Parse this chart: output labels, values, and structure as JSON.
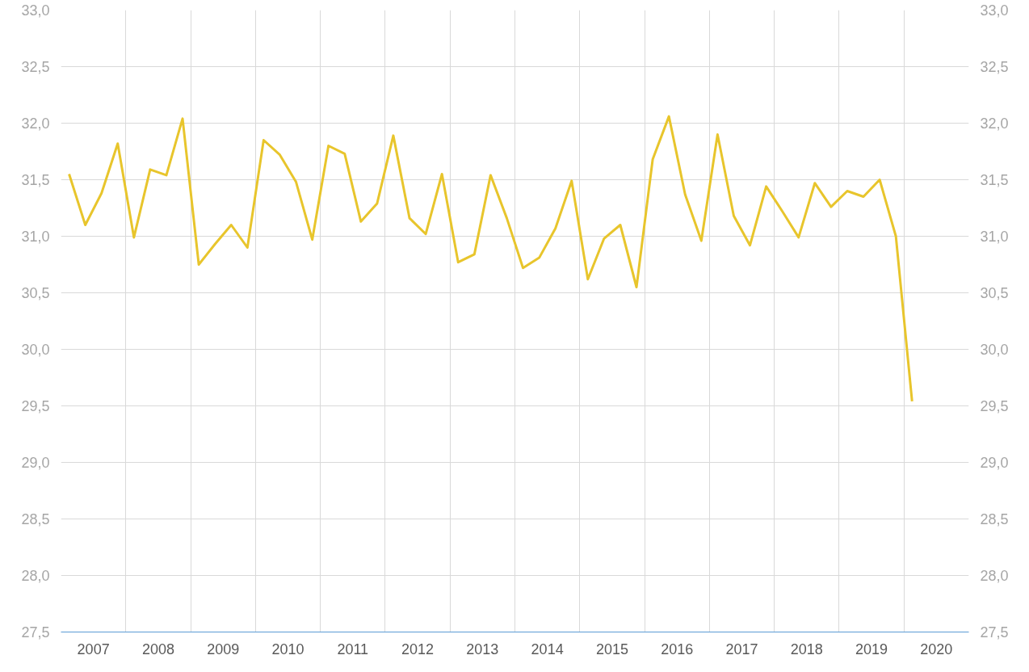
{
  "chart_data": {
    "type": "line",
    "x": [
      2007.125,
      2007.375,
      2007.625,
      2007.875,
      2008.125,
      2008.375,
      2008.625,
      2008.875,
      2009.125,
      2009.375,
      2009.625,
      2009.875,
      2010.125,
      2010.375,
      2010.625,
      2010.875,
      2011.125,
      2011.375,
      2011.625,
      2011.875,
      2012.125,
      2012.375,
      2012.625,
      2012.875,
      2013.125,
      2013.375,
      2013.625,
      2013.875,
      2014.125,
      2014.375,
      2014.625,
      2014.875,
      2015.125,
      2015.375,
      2015.625,
      2015.875,
      2016.125,
      2016.375,
      2016.625,
      2016.875,
      2017.125,
      2017.375,
      2017.625,
      2017.875,
      2018.125,
      2018.375,
      2018.625,
      2018.875,
      2019.125,
      2019.375,
      2019.625,
      2019.875,
      2020.125
    ],
    "series": [
      {
        "color": "#e8c52c",
        "values": [
          31.55,
          31.1,
          31.38,
          31.82,
          30.99,
          31.59,
          31.54,
          32.04,
          30.75,
          30.93,
          31.1,
          30.9,
          31.85,
          31.72,
          31.48,
          30.97,
          31.8,
          31.73,
          31.13,
          31.29,
          31.89,
          31.16,
          31.02,
          31.55,
          30.77,
          30.84,
          31.54,
          31.16,
          30.72,
          30.81,
          31.07,
          31.49,
          30.62,
          30.98,
          31.1,
          30.55,
          31.68,
          32.06,
          31.37,
          30.96,
          31.9,
          31.18,
          30.92,
          31.44,
          31.22,
          30.99,
          31.47,
          31.26,
          31.4,
          31.35,
          31.5,
          31.0,
          29.54
        ]
      }
    ],
    "xlim": [
      2007,
      2021
    ],
    "xticks": [
      {
        "value": 2008,
        "label": null
      },
      {
        "value": 2009,
        "label": null
      },
      {
        "value": 2010,
        "label": null
      },
      {
        "value": 2011,
        "label": null
      },
      {
        "value": 2012,
        "label": null
      },
      {
        "value": 2013,
        "label": null
      },
      {
        "value": 2014,
        "label": null
      },
      {
        "value": 2015,
        "label": null
      },
      {
        "value": 2016,
        "label": null
      },
      {
        "value": 2017,
        "label": null
      },
      {
        "value": 2018,
        "label": null
      },
      {
        "value": 2019,
        "label": null
      },
      {
        "value": 2020,
        "label": null
      },
      {
        "value": 2007.5,
        "label": "2007"
      },
      {
        "value": 2008.5,
        "label": "2008"
      },
      {
        "value": 2009.5,
        "label": "2009"
      },
      {
        "value": 2010.5,
        "label": "2010"
      },
      {
        "value": 2011.5,
        "label": "2011"
      },
      {
        "value": 2012.5,
        "label": "2012"
      },
      {
        "value": 2013.5,
        "label": "2013"
      },
      {
        "value": 2014.5,
        "label": "2014"
      },
      {
        "value": 2015.5,
        "label": "2015"
      },
      {
        "value": 2016.5,
        "label": "2016"
      },
      {
        "value": 2017.5,
        "label": "2017"
      },
      {
        "value": 2018.5,
        "label": "2018"
      },
      {
        "value": 2019.5,
        "label": "2019"
      },
      {
        "value": 2020.5,
        "label": "2020"
      }
    ],
    "ylim": [
      27.5,
      33
    ],
    "yticks": [
      {
        "value": 27.5,
        "label": "27,5"
      },
      {
        "value": 28,
        "label": "28,0"
      },
      {
        "value": 28.5,
        "label": "28,5"
      },
      {
        "value": 29,
        "label": "29,0"
      },
      {
        "value": 29.5,
        "label": "29,5"
      },
      {
        "value": 30,
        "label": "30,0"
      },
      {
        "value": 30.5,
        "label": "30,5"
      },
      {
        "value": 31,
        "label": "31,0"
      },
      {
        "value": 31.5,
        "label": "31,5"
      },
      {
        "value": 32,
        "label": "32,0"
      },
      {
        "value": 32.5,
        "label": "32,5"
      },
      {
        "value": 33,
        "label": "33,0"
      }
    ],
    "y2lim": [
      27.5,
      33
    ],
    "y2ticks": [
      {
        "value": 27.5,
        "label": "27,5"
      },
      {
        "value": 28,
        "label": "28,0"
      },
      {
        "value": 28.5,
        "label": "28,5"
      },
      {
        "value": 29,
        "label": "29,0"
      },
      {
        "value": 29.5,
        "label": "29,5"
      },
      {
        "value": 30,
        "label": "30,0"
      },
      {
        "value": 30.5,
        "label": "30,5"
      },
      {
        "value": 31,
        "label": "31,0"
      },
      {
        "value": 31.5,
        "label": "31,5"
      },
      {
        "value": 32,
        "label": "32,0"
      },
      {
        "value": 32.5,
        "label": "32,5"
      },
      {
        "value": 33,
        "label": "33,0"
      }
    ],
    "grid": true,
    "line_style": "solid"
  }
}
